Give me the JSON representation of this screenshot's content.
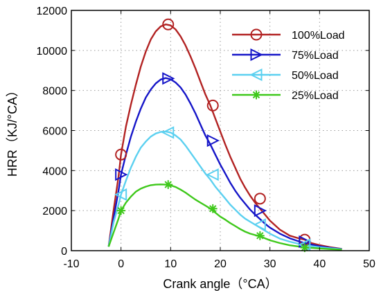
{
  "chart_data": {
    "type": "line",
    "xlabel": "Crank angle（°CA）",
    "ylabel": "HRR（KJ/°CA）",
    "xlim": [
      -10,
      50
    ],
    "ylim": [
      0,
      12000
    ],
    "xticks": [
      -10,
      0,
      10,
      20,
      30,
      40,
      50
    ],
    "yticks": [
      0,
      2000,
      4000,
      6000,
      8000,
      10000,
      12000
    ],
    "grid": true,
    "legend_position": "top-right",
    "series": [
      {
        "name": "100%Load",
        "color": "#b22222",
        "marker": "circle",
        "x": [
          -2.5,
          -1.5,
          -0.5,
          0,
          1,
          2,
          3,
          4,
          5,
          6,
          7,
          8,
          9,
          10,
          11,
          12,
          13,
          14,
          15,
          16,
          17,
          18,
          19,
          20,
          21,
          22,
          23,
          24,
          25,
          26,
          27,
          28,
          29,
          30,
          32,
          34,
          36,
          37,
          38,
          40,
          42,
          44.5
        ],
        "y": [
          200,
          2000,
          3700,
          4800,
          6200,
          7300,
          8300,
          9200,
          9950,
          10550,
          10950,
          11200,
          11300,
          11250,
          11050,
          10700,
          10250,
          9700,
          9100,
          8450,
          7800,
          7250,
          6600,
          5950,
          5300,
          4700,
          4150,
          3600,
          3150,
          2750,
          2400,
          2100,
          1800,
          1500,
          1050,
          750,
          600,
          550,
          400,
          280,
          180,
          90
        ],
        "marker_x": [
          0,
          9.5,
          18.5,
          28,
          37
        ],
        "marker_y": [
          4800,
          11300,
          7250,
          2600,
          550
        ]
      },
      {
        "name": "75%Load",
        "color": "#1515c8",
        "marker": "triangle-right",
        "x": [
          -2.5,
          -1.5,
          -0.5,
          0,
          1,
          2,
          3,
          4,
          5,
          6,
          7,
          8,
          9,
          10,
          11,
          12,
          13,
          14,
          15,
          16,
          17,
          18,
          19,
          20,
          21,
          22,
          23,
          24,
          25,
          26,
          27,
          28,
          29,
          30,
          32,
          34,
          36,
          38,
          40,
          42,
          44.5
        ],
        "y": [
          200,
          1600,
          3000,
          3800,
          4800,
          5700,
          6450,
          7100,
          7650,
          8050,
          8350,
          8550,
          8620,
          8560,
          8400,
          8150,
          7800,
          7350,
          6850,
          6300,
          5750,
          5300,
          4800,
          4300,
          3850,
          3400,
          3000,
          2650,
          2350,
          2050,
          1800,
          1580,
          1350,
          1150,
          850,
          620,
          450,
          320,
          220,
          150,
          80
        ],
        "marker_x": [
          0,
          9.5,
          18.5,
          28,
          37
        ],
        "marker_y": [
          3800,
          8600,
          5500,
          2000,
          450
        ]
      },
      {
        "name": "50%Load",
        "color": "#5bd0f0",
        "marker": "triangle-left",
        "x": [
          -2.5,
          -1.5,
          -0.5,
          0,
          1,
          2,
          3,
          4,
          5,
          6,
          7,
          8,
          9,
          10,
          11,
          12,
          13,
          14,
          15,
          16,
          17,
          18,
          19,
          20,
          21,
          22,
          23,
          24,
          25,
          26,
          27,
          28,
          29,
          30,
          32,
          34,
          36,
          38,
          40,
          42,
          44.5
        ],
        "y": [
          200,
          1400,
          2300,
          2800,
          3500,
          4150,
          4700,
          5150,
          5450,
          5700,
          5850,
          5930,
          5950,
          5900,
          5750,
          5550,
          5250,
          4900,
          4550,
          4200,
          3850,
          3550,
          3200,
          2900,
          2600,
          2300,
          2050,
          1800,
          1600,
          1450,
          1300,
          1150,
          1000,
          850,
          600,
          450,
          330,
          240,
          170,
          120,
          70
        ],
        "marker_x": [
          0,
          9.5,
          18.5,
          28,
          37
        ],
        "marker_y": [
          2800,
          5900,
          3800,
          1300,
          300
        ]
      },
      {
        "name": "25%Load",
        "color": "#3ec81a",
        "marker": "asterisk",
        "x": [
          -2.5,
          -1.5,
          -0.5,
          0,
          1,
          2,
          3,
          4,
          5,
          6,
          7,
          8,
          9,
          10,
          11,
          12,
          13,
          14,
          15,
          16,
          17,
          18,
          19,
          20,
          21,
          22,
          23,
          24,
          25,
          26,
          27,
          28,
          29,
          30,
          32,
          34,
          36,
          38,
          40,
          42,
          44.5
        ],
        "y": [
          200,
          900,
          1600,
          2000,
          2400,
          2700,
          2950,
          3100,
          3200,
          3270,
          3300,
          3310,
          3300,
          3260,
          3180,
          3050,
          2900,
          2720,
          2550,
          2400,
          2250,
          2100,
          1900,
          1700,
          1550,
          1380,
          1230,
          1080,
          950,
          850,
          780,
          720,
          620,
          520,
          380,
          270,
          200,
          150,
          110,
          80,
          50
        ],
        "marker_x": [
          0,
          9.5,
          18.5,
          28,
          37
        ],
        "marker_y": [
          2000,
          3300,
          2100,
          750,
          150
        ]
      }
    ]
  }
}
